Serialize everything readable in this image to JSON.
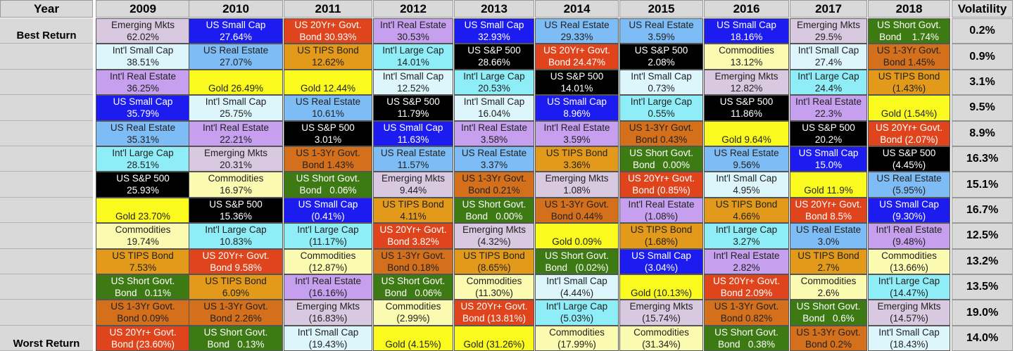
{
  "chart_data": {
    "type": "table",
    "title": "",
    "corner_label": "Year",
    "years": [
      "2009",
      "2010",
      "2011",
      "2012",
      "2013",
      "2014",
      "2015",
      "2016",
      "2017",
      "2018"
    ],
    "volatility_header": "Volatility",
    "best_label": "Best Return",
    "worst_label": "Worst Return",
    "volatility": [
      "0.2%",
      "0.9%",
      "3.1%",
      "9.5%",
      "8.9%",
      "16.3%",
      "15.1%",
      "16.7%",
      "12.5%",
      "13.2%",
      "13.5%",
      "19.0%",
      "14.0%"
    ],
    "colors": {
      "Emerging Mkts": "#d9c9e0",
      "US Small Cap": "#1c1cf0",
      "US 20Yr+ Govt.": "#e0441c",
      "Int'l Real Estate": "#c6a0ee",
      "US Real Estate": "#7ebcf5",
      "US Short Govt.": "#3d7a14",
      "Int'l Small Cap": "#dcf6fb",
      "US TIPS Bond": "#e39a1a",
      "Int'l Large Cap": "#8eedf7",
      "US S&P 500": "#000000",
      "Commodities": "#fafab0",
      "US 1-3Yr Govt.": "#d4701c",
      "Gold": "#fafa1e"
    },
    "text_colors": {
      "US Small Cap": "#ffffff",
      "US 20Yr+ Govt.": "#ffffff",
      "US Short Govt.": "#ffffff",
      "US S&P 500": "#ffffff"
    },
    "columns": [
      [
        {
          "asset": "Emerging Mkts",
          "l1": "Emerging Mkts",
          "l2": "62.02%",
          "value": 62.02
        },
        {
          "asset": "Int'l Small Cap",
          "l1": "Int'l Small Cap",
          "l2": "38.51%",
          "value": 38.51
        },
        {
          "asset": "Int'l Real Estate",
          "l1": "Int'l Real Estate",
          "l2": "36.25%",
          "value": 36.25
        },
        {
          "asset": "US Small Cap",
          "l1": "US Small Cap",
          "l2": "35.79%",
          "value": 35.79
        },
        {
          "asset": "US Real Estate",
          "l1": "US Real Estate",
          "l2": "35.31%",
          "value": 35.31
        },
        {
          "asset": "Int'l Large Cap",
          "l1": "Int'l Large Cap",
          "l2": "28.51%",
          "value": 28.51
        },
        {
          "asset": "US S&P 500",
          "l1": "US S&P 500",
          "l2": "25.93%",
          "value": 25.93
        },
        {
          "asset": "Gold",
          "l1": "",
          "l2": "Gold 23.70%",
          "value": 23.7
        },
        {
          "asset": "Commodities",
          "l1": "Commodities",
          "l2": "19.74%",
          "value": 19.74
        },
        {
          "asset": "US TIPS Bond",
          "l1": "US TIPS Bond",
          "l2": "7.53%",
          "value": 7.53
        },
        {
          "asset": "US Short Govt.",
          "l1": "US Short Govt.",
          "l2": "Bond   0.11%",
          "value": 0.11
        },
        {
          "asset": "US 1-3Yr Govt.",
          "l1": "US 1-3Yr Govt.",
          "l2": "Bond 0.09%",
          "value": 0.09
        },
        {
          "asset": "US 20Yr+ Govt.",
          "l1": "US 20Yr+ Govt.",
          "l2": "Bond (23.60%)",
          "value": -23.6
        }
      ],
      [
        {
          "asset": "US Small Cap",
          "l1": "US Small Cap",
          "l2": "27.64%",
          "value": 27.64
        },
        {
          "asset": "US Real Estate",
          "l1": "US Real Estate",
          "l2": "27.07%",
          "value": 27.07
        },
        {
          "asset": "Gold",
          "l1": "",
          "l2": "Gold 26.49%",
          "value": 26.49
        },
        {
          "asset": "Int'l Small Cap",
          "l1": "Int'l Small Cap",
          "l2": "25.75%",
          "value": 25.75
        },
        {
          "asset": "Int'l Real Estate",
          "l1": "Int'l Real Estate",
          "l2": "22.21%",
          "value": 22.21
        },
        {
          "asset": "Emerging Mkts",
          "l1": "Emerging Mkts",
          "l2": "20.31%",
          "value": 20.31
        },
        {
          "asset": "Commodities",
          "l1": "Commodities",
          "l2": "16.97%",
          "value": 16.97
        },
        {
          "asset": "US S&P 500",
          "l1": "US S&P 500",
          "l2": "15.36%",
          "value": 15.36
        },
        {
          "asset": "Int'l Large Cap",
          "l1": "Int'l Large Cap",
          "l2": "10.83%",
          "value": 10.83
        },
        {
          "asset": "US 20Yr+ Govt.",
          "l1": "US 20Yr+ Govt.",
          "l2": "Bond 9.58%",
          "value": 9.58
        },
        {
          "asset": "US TIPS Bond",
          "l1": "US TIPS Bond",
          "l2": "6.09%",
          "value": 6.09
        },
        {
          "asset": "US 1-3Yr Govt.",
          "l1": "US 1-3Yr Govt.",
          "l2": "Bond 2.26%",
          "value": 2.26
        },
        {
          "asset": "US Short Govt.",
          "l1": "US Short Govt.",
          "l2": "Bond   0.13%",
          "value": 0.13
        }
      ],
      [
        {
          "asset": "US 20Yr+ Govt.",
          "l1": "US 20Yr+ Govt.",
          "l2": "Bond 30.93%",
          "value": 30.93
        },
        {
          "asset": "US TIPS Bond",
          "l1": "US TIPS Bond",
          "l2": "12.62%",
          "value": 12.62
        },
        {
          "asset": "Gold",
          "l1": "",
          "l2": "Gold 12.44%",
          "value": 12.44
        },
        {
          "asset": "US Real Estate",
          "l1": "US Real Estate",
          "l2": "10.61%",
          "value": 10.61
        },
        {
          "asset": "US S&P 500",
          "l1": "US S&P 500",
          "l2": "3.01%",
          "value": 3.01
        },
        {
          "asset": "US 1-3Yr Govt.",
          "l1": "US 1-3Yr Govt.",
          "l2": "Bond 1.43%",
          "value": 1.43
        },
        {
          "asset": "US Short Govt.",
          "l1": "US Short Govt.",
          "l2": "Bond   0.06%",
          "value": 0.06
        },
        {
          "asset": "US Small Cap",
          "l1": "US Small Cap",
          "l2": "(0.41%)",
          "value": -0.41
        },
        {
          "asset": "Int'l Large Cap",
          "l1": "Int'l Large Cap",
          "l2": "(11.17%)",
          "value": -11.17
        },
        {
          "asset": "Commodities",
          "l1": "Commodities",
          "l2": "(12.87%)",
          "value": -12.87
        },
        {
          "asset": "Int'l Real Estate",
          "l1": "Int'l Real Estate",
          "l2": "(16.16%)",
          "value": -16.16
        },
        {
          "asset": "Emerging Mkts",
          "l1": "Emerging Mkts",
          "l2": "(16.83%)",
          "value": -16.83
        },
        {
          "asset": "Int'l Small Cap",
          "l1": "Int'l Small Cap",
          "l2": "(19.43%)",
          "value": -19.43
        }
      ],
      [
        {
          "asset": "Int'l Real Estate",
          "l1": "Int'l Real Estate",
          "l2": "30.53%",
          "value": 30.53
        },
        {
          "asset": "Int'l Large Cap",
          "l1": "Int'l Large Cap",
          "l2": "14.01%",
          "value": 14.01
        },
        {
          "asset": "Int'l Small Cap",
          "l1": "Int'l Small Cap",
          "l2": "12.52%",
          "value": 12.52
        },
        {
          "asset": "US S&P 500",
          "l1": "US S&P 500",
          "l2": "11.79%",
          "value": 11.79
        },
        {
          "asset": "US Small Cap",
          "l1": "US Small Cap",
          "l2": "11.63%",
          "value": 11.63
        },
        {
          "asset": "US Real Estate",
          "l1": "US Real Estate",
          "l2": "11.57%",
          "value": 11.57
        },
        {
          "asset": "Emerging Mkts",
          "l1": "Emerging Mkts",
          "l2": "9.44%",
          "value": 9.44
        },
        {
          "asset": "US TIPS Bond",
          "l1": "US TIPS Bond",
          "l2": "4.11%",
          "value": 4.11
        },
        {
          "asset": "US 20Yr+ Govt.",
          "l1": "US 20Yr+ Govt.",
          "l2": "Bond 3.82%",
          "value": 3.82
        },
        {
          "asset": "US 1-3Yr Govt.",
          "l1": "US 1-3Yr Govt.",
          "l2": "Bond 0.18%",
          "value": 0.18
        },
        {
          "asset": "US Short Govt.",
          "l1": "US Short Govt.",
          "l2": "Bond   0.06%",
          "value": 0.06
        },
        {
          "asset": "Commodities",
          "l1": "Commodities",
          "l2": "(2.99%)",
          "value": -2.99
        },
        {
          "asset": "Gold",
          "l1": "",
          "l2": "Gold (4.15%)",
          "value": -4.15
        }
      ],
      [
        {
          "asset": "US Small Cap",
          "l1": "US Small Cap",
          "l2": "32.93%",
          "value": 32.93
        },
        {
          "asset": "US S&P 500",
          "l1": "US S&P 500",
          "l2": "28.66%",
          "value": 28.66
        },
        {
          "asset": "Int'l Large Cap",
          "l1": "Int'l Large Cap",
          "l2": "20.53%",
          "value": 20.53
        },
        {
          "asset": "Int'l Small Cap",
          "l1": "Int'l Small Cap",
          "l2": "16.04%",
          "value": 16.04
        },
        {
          "asset": "Int'l Real Estate",
          "l1": "Int'l Real Estate",
          "l2": "3.58%",
          "value": 3.58
        },
        {
          "asset": "US Real Estate",
          "l1": "US Real Estate",
          "l2": "3.37%",
          "value": 3.37
        },
        {
          "asset": "US 1-3Yr Govt.",
          "l1": "US 1-3Yr Govt.",
          "l2": "Bond 0.21%",
          "value": 0.21
        },
        {
          "asset": "US Short Govt.",
          "l1": "US Short Govt.",
          "l2": "Bond   0.00%",
          "value": 0.0
        },
        {
          "asset": "Emerging Mkts",
          "l1": "Emerging Mkts",
          "l2": "(4.32%)",
          "value": -4.32
        },
        {
          "asset": "US TIPS Bond",
          "l1": "US TIPS Bond",
          "l2": "(8.65%)",
          "value": -8.65
        },
        {
          "asset": "Commodities",
          "l1": "Commodities",
          "l2": "(11.30%)",
          "value": -11.3
        },
        {
          "asset": "US 20Yr+ Govt.",
          "l1": "US 20Yr+ Govt.",
          "l2": "Bond (13.81%)",
          "value": -13.81
        },
        {
          "asset": "Gold",
          "l1": "",
          "l2": "Gold (31.26%)",
          "value": -31.26
        }
      ],
      [
        {
          "asset": "US Real Estate",
          "l1": "US Real Estate",
          "l2": "29.33%",
          "value": 29.33
        },
        {
          "asset": "US 20Yr+ Govt.",
          "l1": "US 20Yr+ Govt.",
          "l2": "Bond 24.47%",
          "value": 24.47
        },
        {
          "asset": "US S&P 500",
          "l1": "US S&P 500",
          "l2": "14.01%",
          "value": 14.01
        },
        {
          "asset": "US Small Cap",
          "l1": "US Small Cap",
          "l2": "8.96%",
          "value": 8.96
        },
        {
          "asset": "Int'l Real Estate",
          "l1": "Int'l Real Estate",
          "l2": "3.59%",
          "value": 3.59
        },
        {
          "asset": "US TIPS Bond",
          "l1": "US TIPS Bond",
          "l2": "3.36%",
          "value": 3.36
        },
        {
          "asset": "Emerging Mkts",
          "l1": "Emerging Mkts",
          "l2": "1.08%",
          "value": 1.08
        },
        {
          "asset": "US 1-3Yr Govt.",
          "l1": "US 1-3Yr Govt.",
          "l2": "Bond 0.44%",
          "value": 0.44
        },
        {
          "asset": "Gold",
          "l1": "",
          "l2": "Gold 0.09%",
          "value": 0.09
        },
        {
          "asset": "US Short Govt.",
          "l1": "US Short Govt.",
          "l2": "Bond   (0.02%)",
          "value": -0.02
        },
        {
          "asset": "Int'l Small Cap",
          "l1": "Int'l Small Cap",
          "l2": "(4.44%)",
          "value": -4.44
        },
        {
          "asset": "Int'l Large Cap",
          "l1": "Int'l Large Cap",
          "l2": "(5.03%)",
          "value": -5.03
        },
        {
          "asset": "Commodities",
          "l1": "Commodities",
          "l2": "(17.99%)",
          "value": -17.99
        }
      ],
      [
        {
          "asset": "US Real Estate",
          "l1": "US Real Estate",
          "l2": "3.59%",
          "value": 3.59
        },
        {
          "asset": "US S&P 500",
          "l1": "US S&P 500",
          "l2": "2.08%",
          "value": 2.08
        },
        {
          "asset": "Int'l Small Cap",
          "l1": "Int'l Small Cap",
          "l2": "0.73%",
          "value": 0.73
        },
        {
          "asset": "Int'l Large Cap",
          "l1": "Int'l Large Cap",
          "l2": "0.55%",
          "value": 0.55
        },
        {
          "asset": "US 1-3Yr Govt.",
          "l1": "US 1-3Yr Govt.",
          "l2": "Bond 0.43%",
          "value": 0.43
        },
        {
          "asset": "US Short Govt.",
          "l1": "US Short Govt.",
          "l2": "Bond   0.00%",
          "value": 0.0
        },
        {
          "asset": "US 20Yr+ Govt.",
          "l1": "US 20Yr+ Govt.",
          "l2": "Bond (0.85%)",
          "value": -0.85
        },
        {
          "asset": "Int'l Real Estate",
          "l1": "Int'l Real Estate",
          "l2": "(1.08%)",
          "value": -1.08
        },
        {
          "asset": "US TIPS Bond",
          "l1": "US TIPS Bond",
          "l2": "(1.68%)",
          "value": -1.68
        },
        {
          "asset": "US Small Cap",
          "l1": "US Small Cap",
          "l2": "(3.04%)",
          "value": -3.04
        },
        {
          "asset": "Gold",
          "l1": "",
          "l2": "Gold (10.13%)",
          "value": -10.13
        },
        {
          "asset": "Emerging Mkts",
          "l1": "Emerging Mkts",
          "l2": "(15.74%)",
          "value": -15.74
        },
        {
          "asset": "Commodities",
          "l1": "Commodities",
          "l2": "(31.34%)",
          "value": -31.34
        }
      ],
      [
        {
          "asset": "US Small Cap",
          "l1": "US Small Cap",
          "l2": "18.16%",
          "value": 18.16
        },
        {
          "asset": "Commodities",
          "l1": "Commodities",
          "l2": "13.12%",
          "value": 13.12
        },
        {
          "asset": "Emerging Mkts",
          "l1": "Emerging Mkts",
          "l2": "12.82%",
          "value": 12.82
        },
        {
          "asset": "US S&P 500",
          "l1": "US S&P 500",
          "l2": "11.86%",
          "value": 11.86
        },
        {
          "asset": "Gold",
          "l1": "",
          "l2": "Gold 9.64%",
          "value": 9.64
        },
        {
          "asset": "US Real Estate",
          "l1": "US Real Estate",
          "l2": "9.56%",
          "value": 9.56
        },
        {
          "asset": "Int'l Small Cap",
          "l1": "Int'l Small Cap",
          "l2": "4.95%",
          "value": 4.95
        },
        {
          "asset": "US TIPS Bond",
          "l1": "US TIPS Bond",
          "l2": "4.66%",
          "value": 4.66
        },
        {
          "asset": "Int'l Large Cap",
          "l1": "Int'l Large Cap",
          "l2": "3.27%",
          "value": 3.27
        },
        {
          "asset": "Int'l Real Estate",
          "l1": "Int'l Real Estate",
          "l2": "2.82%",
          "value": 2.82
        },
        {
          "asset": "US 20Yr+ Govt.",
          "l1": "US 20Yr+ Govt.",
          "l2": "Bond 2.09%",
          "value": 2.09
        },
        {
          "asset": "US 1-3Yr Govt.",
          "l1": "US 1-3Yr Govt.",
          "l2": "Bond 0.82%",
          "value": 0.82
        },
        {
          "asset": "US Short Govt.",
          "l1": "US Short Govt.",
          "l2": "Bond   0.38%",
          "value": 0.38
        }
      ],
      [
        {
          "asset": "Emerging Mkts",
          "l1": "Emerging Mkts",
          "l2": "29.5%",
          "value": 29.5
        },
        {
          "asset": "Int'l Small Cap",
          "l1": "Int'l Small Cap",
          "l2": "27.4%",
          "value": 27.4
        },
        {
          "asset": "Int'l Large Cap",
          "l1": "Int'l Large Cap",
          "l2": "24.4%",
          "value": 24.4
        },
        {
          "asset": "Int'l Real Estate",
          "l1": "Int'l Real Estate",
          "l2": "22.3%",
          "value": 22.3
        },
        {
          "asset": "US S&P 500",
          "l1": "US S&P 500",
          "l2": "20.2%",
          "value": 20.2
        },
        {
          "asset": "US Small Cap",
          "l1": "US Small Cap",
          "l2": "15.0%",
          "value": 15.0
        },
        {
          "asset": "Gold",
          "l1": "",
          "l2": "Gold 11.9%",
          "value": 11.9
        },
        {
          "asset": "US 20Yr+ Govt.",
          "l1": "US 20Yr+ Govt.",
          "l2": "Bond 8.5%",
          "value": 8.5
        },
        {
          "asset": "US Real Estate",
          "l1": "US Real Estate",
          "l2": "3.0%",
          "value": 3.0
        },
        {
          "asset": "US TIPS Bond",
          "l1": "US TIPS Bond",
          "l2": "2.7%",
          "value": 2.7
        },
        {
          "asset": "Commodities",
          "l1": "Commodities",
          "l2": "2.6%",
          "value": 2.6
        },
        {
          "asset": "US Short Govt.",
          "l1": "US Short Govt.",
          "l2": "Bond   0.6%",
          "value": 0.6
        },
        {
          "asset": "US 1-3Yr Govt.",
          "l1": "US 1-3Yr Govt.",
          "l2": "Bond 0.2%",
          "value": 0.2
        }
      ],
      [
        {
          "asset": "US Short Govt.",
          "l1": "US Short Govt.",
          "l2": "Bond    1.74%",
          "value": 1.74
        },
        {
          "asset": "US 1-3Yr Govt.",
          "l1": "US 1-3Yr Govt.",
          "l2": "Bond 1.45%",
          "value": 1.45
        },
        {
          "asset": "US TIPS Bond",
          "l1": "US TIPS Bond",
          "l2": "(1.43%)",
          "value": -1.43
        },
        {
          "asset": "Gold",
          "l1": "",
          "l2": "Gold (1.54%)",
          "value": -1.54
        },
        {
          "asset": "US 20Yr+ Govt.",
          "l1": "US 20Yr+ Govt.",
          "l2": "Bond (2.07%)",
          "value": -2.07
        },
        {
          "asset": "US S&P 500",
          "l1": "US S&P 500",
          "l2": "(4.45%)",
          "value": -4.45
        },
        {
          "asset": "US Real Estate",
          "l1": "US Real Estate",
          "l2": "(5.95%)",
          "value": -5.95
        },
        {
          "asset": "US Small Cap",
          "l1": "US Small Cap",
          "l2": "(9.30%)",
          "value": -9.3
        },
        {
          "asset": "Int'l Real Estate",
          "l1": "Int'l Real Estate",
          "l2": "(9.48%)",
          "value": -9.48
        },
        {
          "asset": "Commodities",
          "l1": "Commodities",
          "l2": "(13.66%)",
          "value": -13.66
        },
        {
          "asset": "Int'l Large Cap",
          "l1": "Int'l Large Cap",
          "l2": "(14.47%)",
          "value": -14.47
        },
        {
          "asset": "Emerging Mkts",
          "l1": "Emerging Mkts",
          "l2": "(14.57%)",
          "value": -14.57
        },
        {
          "asset": "Int'l Small Cap",
          "l1": "Int'l Small Cap",
          "l2": "(18.43%)",
          "value": -18.43
        }
      ]
    ]
  }
}
